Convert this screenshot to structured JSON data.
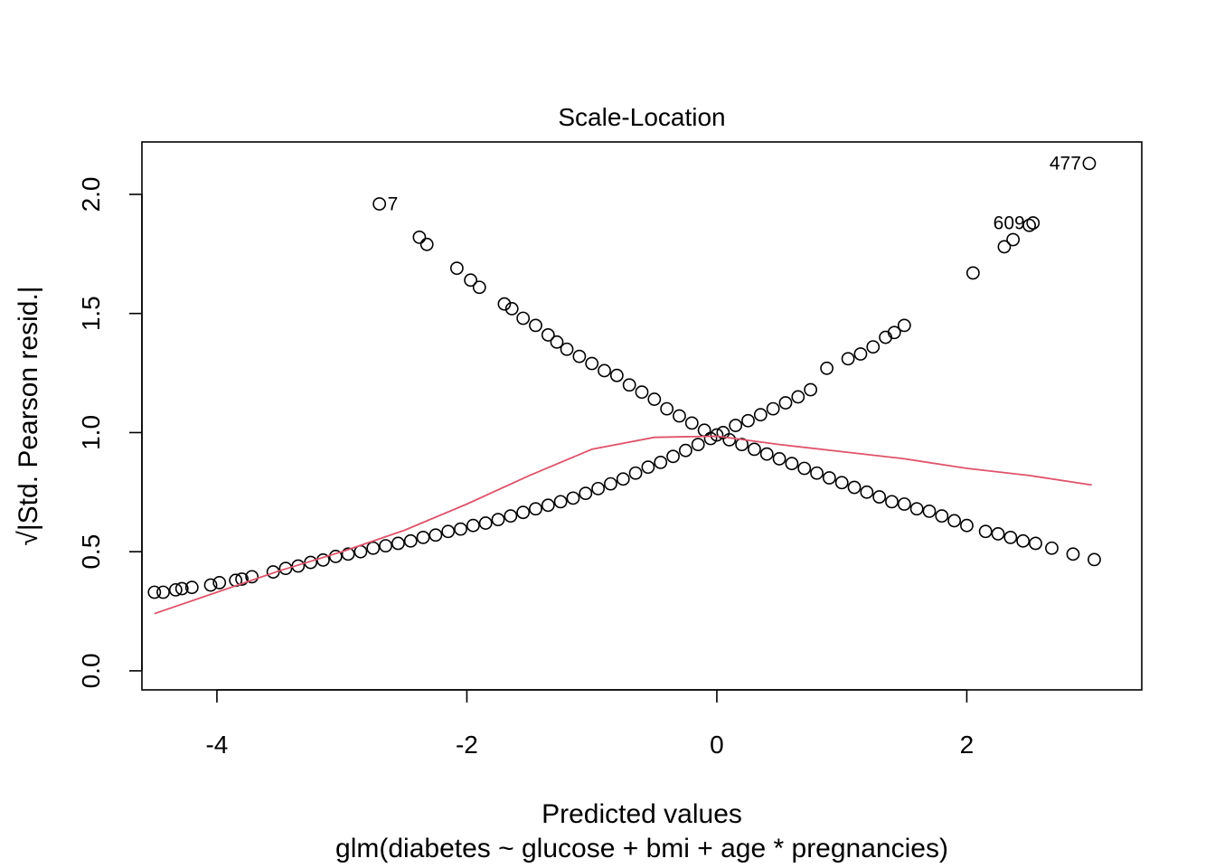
{
  "chart_data": {
    "type": "scatter",
    "title": "Scale-Location",
    "xlabel": "Predicted values",
    "ylabel": "√|Std. Pearson resid.|",
    "subtitle": "glm(diabetes ~ glucose + bmi + age * pregnancies)",
    "xlim": [
      -4.6,
      3.4
    ],
    "ylim": [
      -0.08,
      2.22
    ],
    "xticks": [
      -4,
      -2,
      0,
      2
    ],
    "xtick_labels": [
      "-4",
      "-2",
      "0",
      "2"
    ],
    "yticks": [
      0.0,
      0.5,
      1.0,
      1.5,
      2.0
    ],
    "ytick_labels": [
      "0.0",
      "0.5",
      "1.0",
      "1.5",
      "2.0"
    ],
    "grid": false,
    "series": [
      {
        "role": "points",
        "color": "#000000",
        "points": [
          [
            -4.5,
            0.33
          ],
          [
            -4.43,
            0.33
          ],
          [
            -4.33,
            0.34
          ],
          [
            -4.28,
            0.345
          ],
          [
            -4.2,
            0.35
          ],
          [
            -4.05,
            0.36
          ],
          [
            -3.98,
            0.37
          ],
          [
            -3.85,
            0.38
          ],
          [
            -3.8,
            0.385
          ],
          [
            -3.72,
            0.395
          ],
          [
            -3.55,
            0.415
          ],
          [
            -3.45,
            0.43
          ],
          [
            -3.35,
            0.44
          ],
          [
            -3.25,
            0.455
          ],
          [
            -3.15,
            0.465
          ],
          [
            -3.05,
            0.48
          ],
          [
            -2.95,
            0.49
          ],
          [
            -2.85,
            0.5
          ],
          [
            -2.75,
            0.515
          ],
          [
            -2.65,
            0.525
          ],
          [
            -2.55,
            0.535
          ],
          [
            -2.45,
            0.545
          ],
          [
            -2.35,
            0.56
          ],
          [
            -2.25,
            0.57
          ],
          [
            -2.15,
            0.585
          ],
          [
            -2.05,
            0.595
          ],
          [
            -1.95,
            0.61
          ],
          [
            -1.85,
            0.62
          ],
          [
            -1.75,
            0.635
          ],
          [
            -1.65,
            0.65
          ],
          [
            -1.55,
            0.665
          ],
          [
            -1.45,
            0.68
          ],
          [
            -1.35,
            0.695
          ],
          [
            -1.25,
            0.71
          ],
          [
            -1.15,
            0.725
          ],
          [
            -1.05,
            0.745
          ],
          [
            -0.95,
            0.765
          ],
          [
            -0.85,
            0.785
          ],
          [
            -0.75,
            0.805
          ],
          [
            -0.65,
            0.83
          ],
          [
            -0.55,
            0.855
          ],
          [
            -0.45,
            0.875
          ],
          [
            -0.35,
            0.9
          ],
          [
            -0.25,
            0.925
          ],
          [
            -0.15,
            0.95
          ],
          [
            -0.05,
            0.975
          ],
          [
            0.05,
            1.0
          ],
          [
            0.15,
            1.03
          ],
          [
            0.25,
            1.05
          ],
          [
            0.35,
            1.075
          ],
          [
            0.45,
            1.1
          ],
          [
            0.55,
            1.125
          ],
          [
            0.65,
            1.15
          ],
          [
            0.75,
            1.18
          ],
          [
            0.88,
            1.27
          ],
          [
            1.05,
            1.31
          ],
          [
            1.15,
            1.33
          ],
          [
            1.25,
            1.36
          ],
          [
            1.35,
            1.4
          ],
          [
            1.42,
            1.42
          ],
          [
            1.5,
            1.45
          ],
          [
            2.05,
            1.67
          ],
          [
            2.3,
            1.78
          ],
          [
            2.37,
            1.81
          ],
          [
            2.5,
            1.87
          ],
          [
            -2.7,
            1.96
          ],
          [
            -2.38,
            1.82
          ],
          [
            -2.32,
            1.79
          ],
          [
            -2.08,
            1.69
          ],
          [
            -1.97,
            1.64
          ],
          [
            -1.9,
            1.61
          ],
          [
            -1.7,
            1.54
          ],
          [
            -1.64,
            1.52
          ],
          [
            -1.55,
            1.48
          ],
          [
            -1.45,
            1.45
          ],
          [
            -1.35,
            1.41
          ],
          [
            -1.28,
            1.38
          ],
          [
            -1.2,
            1.35
          ],
          [
            -1.1,
            1.32
          ],
          [
            -1.0,
            1.29
          ],
          [
            -0.9,
            1.26
          ],
          [
            -0.8,
            1.24
          ],
          [
            -0.7,
            1.2
          ],
          [
            -0.6,
            1.17
          ],
          [
            -0.5,
            1.14
          ],
          [
            -0.4,
            1.1
          ],
          [
            -0.3,
            1.07
          ],
          [
            -0.2,
            1.04
          ],
          [
            -0.1,
            1.01
          ],
          [
            0.0,
            0.99
          ],
          [
            0.1,
            0.97
          ],
          [
            0.2,
            0.95
          ],
          [
            0.3,
            0.93
          ],
          [
            0.4,
            0.91
          ],
          [
            0.5,
            0.89
          ],
          [
            0.6,
            0.87
          ],
          [
            0.7,
            0.85
          ],
          [
            0.8,
            0.83
          ],
          [
            0.9,
            0.81
          ],
          [
            1.0,
            0.79
          ],
          [
            1.1,
            0.77
          ],
          [
            1.2,
            0.75
          ],
          [
            1.3,
            0.73
          ],
          [
            1.4,
            0.71
          ],
          [
            1.5,
            0.7
          ],
          [
            1.6,
            0.68
          ],
          [
            1.7,
            0.67
          ],
          [
            1.8,
            0.65
          ],
          [
            1.9,
            0.63
          ],
          [
            2.0,
            0.61
          ],
          [
            2.15,
            0.585
          ],
          [
            2.25,
            0.575
          ],
          [
            2.35,
            0.56
          ],
          [
            2.45,
            0.545
          ],
          [
            2.55,
            0.535
          ],
          [
            2.68,
            0.515
          ],
          [
            2.85,
            0.49
          ],
          [
            3.02,
            0.467
          ],
          [
            2.98,
            2.13
          ],
          [
            2.53,
            1.88
          ]
        ]
      },
      {
        "role": "smoother",
        "color": "#df536b",
        "x": [
          -4.5,
          -4.0,
          -3.5,
          -3.0,
          -2.5,
          -2.0,
          -1.5,
          -1.0,
          -0.5,
          0.0,
          0.5,
          1.0,
          1.5,
          2.0,
          2.5,
          3.0
        ],
        "y": [
          0.24,
          0.33,
          0.42,
          0.5,
          0.59,
          0.7,
          0.82,
          0.93,
          0.98,
          0.985,
          0.95,
          0.92,
          0.89,
          0.85,
          0.82,
          0.78
        ]
      }
    ],
    "point_labels": [
      {
        "text": "7",
        "x": -2.7,
        "y": 1.96,
        "side": "right"
      },
      {
        "text": "477",
        "x": 2.98,
        "y": 2.13,
        "side": "left"
      },
      {
        "text": "609",
        "x": 2.53,
        "y": 1.88,
        "side": "left"
      }
    ]
  }
}
